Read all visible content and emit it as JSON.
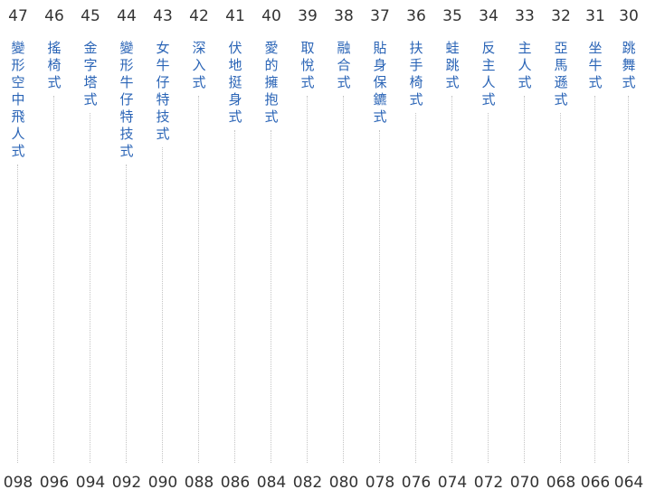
{
  "chapters": [
    {
      "number": "47",
      "title": "變形空中飛人式",
      "page": "098"
    },
    {
      "number": "46",
      "title": "搖椅式",
      "page": "096"
    },
    {
      "number": "45",
      "title": "金字塔式",
      "page": "094"
    },
    {
      "number": "44",
      "title": "變形牛仔特技式",
      "page": "092"
    },
    {
      "number": "43",
      "title": "女牛仔特技式",
      "page": "090"
    },
    {
      "number": "42",
      "title": "深入式",
      "page": "088"
    },
    {
      "number": "41",
      "title": "伏地挺身式",
      "page": "086"
    },
    {
      "number": "40",
      "title": "愛的擁抱式",
      "page": "084"
    },
    {
      "number": "39",
      "title": "取悅式",
      "page": "082"
    },
    {
      "number": "38",
      "title": "融合式",
      "page": "080"
    },
    {
      "number": "37",
      "title": "貼身保鑣式",
      "page": "078"
    },
    {
      "number": "36",
      "title": "扶手椅式",
      "page": "076"
    },
    {
      "number": "35",
      "title": "蛙跳式",
      "page": "074"
    },
    {
      "number": "34",
      "title": "反主人式",
      "page": "072"
    },
    {
      "number": "33",
      "title": "主人式",
      "page": "070"
    },
    {
      "number": "32",
      "title": "亞馬遜式",
      "page": "068"
    },
    {
      "number": "31",
      "title": "坐牛式",
      "page": "066"
    },
    {
      "number": "30",
      "title": "跳舞式",
      "page": "064"
    }
  ]
}
